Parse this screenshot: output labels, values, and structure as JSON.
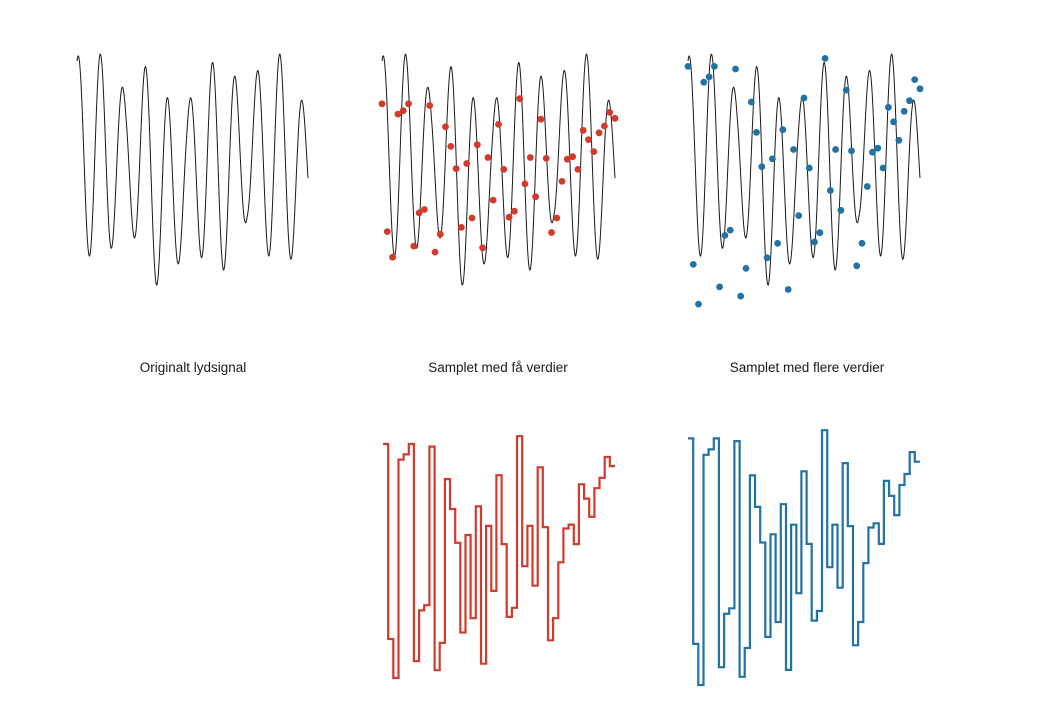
{
  "panels": {
    "original": {
      "caption": "Originalt lydsignal"
    },
    "few": {
      "caption": "Samplet med få verdier"
    },
    "many": {
      "caption": "Samplet med flere verdier"
    }
  },
  "colors": {
    "signal": "#1a1a1a",
    "few_samples": "#d43a2c",
    "many_samples": "#2272a4"
  },
  "chart_data": [
    {
      "type": "line",
      "x": [
        0.0,
        0.1,
        0.2,
        0.3,
        0.4,
        0.5,
        0.6,
        0.7,
        0.8,
        0.9,
        1.0
      ],
      "values": [
        0.8,
        0.36,
        0.5,
        0.18,
        -0.7,
        0.2,
        0.12,
        0.25,
        0.55,
        0.3,
        -0.1
      ],
      "ylim": [
        -1,
        1
      ],
      "xlabel": "",
      "ylabel": ""
    },
    {
      "type": "scatter",
      "values": [
        0.8,
        -0.7,
        -1.0,
        0.68,
        0.72,
        0.8,
        -0.87,
        -0.48,
        -0.44,
        0.78,
        -0.94,
        -0.73,
        0.53,
        0.3,
        0.04,
        -0.65,
        0.1,
        -0.54,
        0.32,
        -0.89,
        0.17,
        -0.33,
        0.56,
        0.03,
        -0.53,
        -0.46,
        0.86,
        -0.14,
        0.17,
        -0.29,
        0.62,
        0.16,
        -0.71,
        -0.54,
        -0.11,
        0.15,
        0.18,
        0.03,
        0.49,
        0.38,
        0.24,
        0.46,
        0.54,
        0.7,
        0.63
      ],
      "xlabel": "",
      "ylabel": ""
    },
    {
      "type": "line",
      "values": [
        0.8,
        -0.7,
        -1.0,
        0.68,
        0.72,
        0.8,
        -0.87,
        -0.48,
        -0.44,
        0.78,
        -0.94,
        -0.73,
        0.53,
        0.3,
        0.04,
        -0.65,
        0.1,
        -0.54,
        0.32,
        -0.89,
        0.17,
        -0.33,
        0.56,
        0.03,
        -0.53,
        -0.46,
        0.86,
        -0.14,
        0.17,
        -0.29,
        0.62,
        0.16,
        -0.71,
        -0.54,
        -0.11,
        0.15,
        0.18,
        0.03,
        0.49,
        0.38,
        0.24,
        0.46,
        0.54,
        0.7,
        0.63
      ],
      "xlabel": "",
      "ylabel": ""
    }
  ]
}
